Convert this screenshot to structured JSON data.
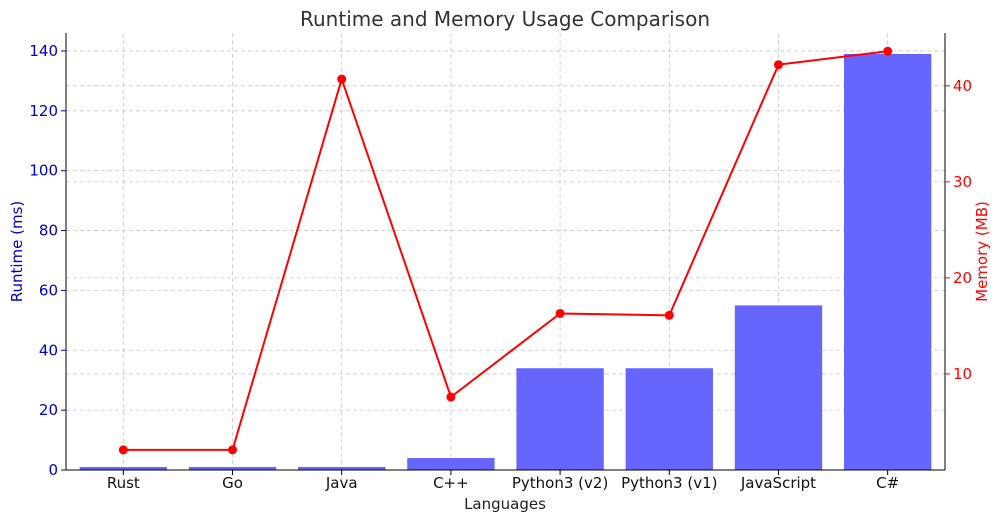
{
  "chart_data": {
    "type": "bar",
    "title": "Runtime and Memory Usage Comparison",
    "xlabel": "Languages",
    "ylabel": "Runtime (ms)",
    "y2label": "Memory (MB)",
    "categories": [
      "Rust",
      "Go",
      "Java",
      "C++",
      "Python3 (v2)",
      "Python3 (v1)",
      "JavaScript",
      "C#"
    ],
    "series": [
      {
        "name": "Runtime (ms)",
        "type": "bar",
        "axis": "left",
        "color": "#6666ff",
        "values": [
          1,
          1,
          1,
          4,
          34,
          34,
          55,
          139
        ]
      },
      {
        "name": "Memory (MB)",
        "type": "line",
        "axis": "right",
        "color": "#ff0000",
        "values": [
          2.1,
          2.1,
          40.7,
          7.6,
          16.3,
          16.1,
          42.2,
          43.6
        ]
      }
    ],
    "ylim": [
      0,
      146
    ],
    "y2lim": [
      0,
      45.5
    ],
    "yticks": [
      0,
      20,
      40,
      60,
      80,
      100,
      120,
      140
    ],
    "y2ticks": [
      10,
      20,
      30,
      40
    ],
    "grid": true,
    "left_axis_color": "#0000cc",
    "right_axis_color": "#ff0000"
  }
}
